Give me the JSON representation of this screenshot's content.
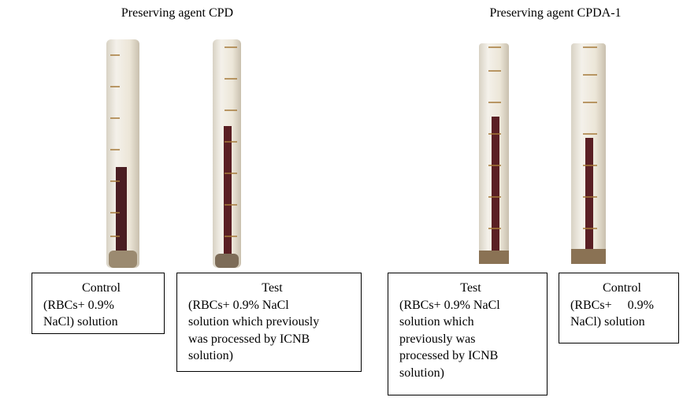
{
  "headings": [
    "Preserving agent CPD",
    "Preserving agent CPDA-1"
  ],
  "boxes": [
    {
      "lines": [
        "Control",
        "(RBCs+ 0.9%",
        "NaCl) solution"
      ]
    },
    {
      "lines": [
        "Test",
        "(RBCs+ 0.9% NaCl",
        "solution which previously",
        "was processed by ICNB",
        "solution)"
      ]
    },
    {
      "lines": [
        "Test",
        "(RBCs+ 0.9% NaCl",
        "solution which",
        "previously was",
        "processed by ICNB",
        "solution)"
      ]
    },
    {
      "lines": [
        "Control",
        "(RBCs+     0.9%",
        "NaCl) solution"
      ]
    }
  ]
}
